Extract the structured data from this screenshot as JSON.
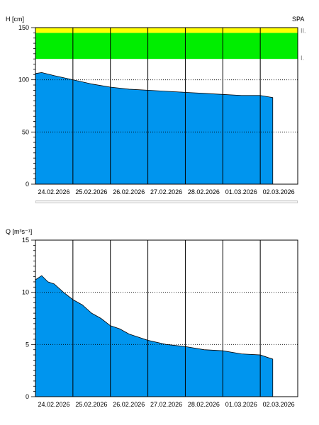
{
  "chart_data": [
    {
      "type": "area",
      "title": "",
      "corner_label": "SPA",
      "ylabel": "H [cm]",
      "xlabel": "",
      "ylim": [
        0,
        150
      ],
      "yticks": [
        0,
        50,
        100,
        150
      ],
      "grid": "dotted horizontal at 50 and 100; solid vertical at each day",
      "xlim": [
        "2026-02-24T00:00",
        "2026-03-03T00:00"
      ],
      "xtick_labels": [
        "24.02.2026",
        "25.02.2026",
        "26.02.2026",
        "27.02.2026",
        "28.02.2026",
        "01.03.2026",
        "02.03.2026"
      ],
      "fill_color": "#0095ee",
      "bands": [
        {
          "label": "I.",
          "from": 120,
          "to": 145,
          "color": "#00ee00"
        },
        {
          "label": "II.",
          "from": 145,
          "to": 150,
          "color": "#ffff00"
        }
      ],
      "series": [
        {
          "x": [
            "2026-02-24T00:00",
            "2026-02-24T04:00",
            "2026-02-24T12:00",
            "2026-02-25T00:00",
            "2026-02-25T12:00",
            "2026-02-26T00:00",
            "2026-02-26T12:00",
            "2026-02-27T00:00",
            "2026-02-27T12:00",
            "2026-02-28T00:00",
            "2026-02-28T12:00",
            "2026-03-01T00:00",
            "2026-03-01T12:00",
            "2026-03-02T00:00",
            "2026-03-02T08:00"
          ],
          "values": [
            106,
            107,
            104,
            100,
            96,
            93,
            91,
            90,
            89,
            88,
            87,
            86,
            85,
            85,
            83
          ]
        }
      ]
    },
    {
      "type": "area",
      "title": "",
      "ylabel": "Q [m³s⁻¹]",
      "xlabel": "",
      "ylim": [
        0,
        15
      ],
      "yticks": [
        0,
        5,
        10,
        15
      ],
      "grid": "dotted horizontal at 5 and 10; solid vertical at each day",
      "xlim": [
        "2026-02-24T00:00",
        "2026-03-03T00:00"
      ],
      "xtick_labels": [
        "24.02.2026",
        "25.02.2026",
        "26.02.2026",
        "27.02.2026",
        "28.02.2026",
        "01.03.2026",
        "02.03.2026"
      ],
      "fill_color": "#0095ee",
      "series": [
        {
          "x": [
            "2026-02-24T00:00",
            "2026-02-24T04:00",
            "2026-02-24T08:00",
            "2026-02-24T12:00",
            "2026-02-24T18:00",
            "2026-02-25T00:00",
            "2026-02-25T06:00",
            "2026-02-25T12:00",
            "2026-02-25T18:00",
            "2026-02-26T00:00",
            "2026-02-26T06:00",
            "2026-02-26T12:00",
            "2026-02-26T18:00",
            "2026-02-27T00:00",
            "2026-02-27T12:00",
            "2026-02-28T00:00",
            "2026-02-28T12:00",
            "2026-03-01T00:00",
            "2026-03-01T12:00",
            "2026-03-02T00:00",
            "2026-03-02T08:00"
          ],
          "values": [
            11.2,
            11.6,
            11.0,
            10.8,
            10.0,
            9.3,
            8.8,
            8.0,
            7.5,
            6.8,
            6.5,
            6.0,
            5.7,
            5.4,
            5.0,
            4.8,
            4.5,
            4.4,
            4.1,
            4.0,
            3.6
          ]
        }
      ]
    }
  ]
}
